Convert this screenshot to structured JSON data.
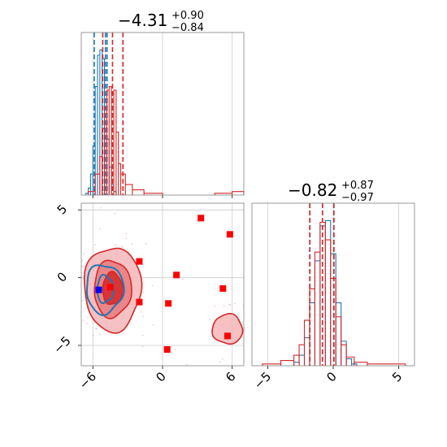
{
  "colors": {
    "blue": "#1f77b4",
    "red": "#d62728",
    "grid": "#cccccc",
    "frame": "#808080",
    "red_fill_light": "#f4b6b8",
    "red_fill_mid": "#e87a7e",
    "red_fill_dark": "#d62728",
    "marker_red": "#ff0000",
    "marker_blue": "#0000ff"
  },
  "titles": {
    "param1": {
      "value": "−4.31",
      "plus": "+0.90",
      "minus": "−0.84"
    },
    "param2": {
      "value": "−0.82",
      "plus": "+0.87",
      "minus": "−0.97"
    }
  },
  "chart_data": [
    {
      "type": "histogram",
      "panel": "top-left marginal",
      "xlim": [
        -7,
        7
      ],
      "xticks": [
        "−6",
        "0",
        "6"
      ],
      "grid": true,
      "series": [
        {
          "color": "#1f77b4",
          "bins": [
            [
              -6.6,
              -6.4,
              0.01
            ],
            [
              -6.4,
              -6.2,
              0.04
            ],
            [
              -6.2,
              -6.0,
              0.12
            ],
            [
              -6.0,
              -5.8,
              0.28
            ],
            [
              -5.8,
              -5.6,
              0.62
            ],
            [
              -5.6,
              -5.4,
              0.8
            ],
            [
              -5.4,
              -5.2,
              0.83
            ],
            [
              -5.2,
              -5.0,
              0.78
            ],
            [
              -5.0,
              -4.8,
              0.55
            ],
            [
              -4.8,
              -4.6,
              0.32
            ],
            [
              -4.6,
              -4.4,
              0.16
            ],
            [
              -4.4,
              -4.2,
              0.06
            ],
            [
              -4.2,
              -4.0,
              0.02
            ]
          ],
          "quantiles": [
            -5.88,
            -4.92,
            -4.78
          ]
        },
        {
          "color": "#d62728",
          "bins": [
            [
              -6.4,
              -5.8,
              0.02
            ],
            [
              -5.8,
              -5.4,
              0.12
            ],
            [
              -5.4,
              -5.2,
              0.22
            ],
            [
              -5.2,
              -5.0,
              0.38
            ],
            [
              -5.0,
              -4.8,
              0.5
            ],
            [
              -4.8,
              -4.6,
              0.6
            ],
            [
              -4.6,
              -4.4,
              0.62
            ],
            [
              -4.4,
              -4.2,
              0.58
            ],
            [
              -4.2,
              -4.0,
              0.6
            ],
            [
              -4.0,
              -3.8,
              0.36
            ],
            [
              -3.8,
              -3.6,
              0.18
            ],
            [
              -3.6,
              -3.2,
              0.12
            ],
            [
              -3.2,
              -2.6,
              0.06
            ],
            [
              -2.6,
              -1.6,
              0.03
            ],
            [
              -1.6,
              0.0,
              0.01
            ],
            [
              4.5,
              6.0,
              0.01
            ],
            [
              6.0,
              7.0,
              0.02
            ]
          ],
          "quantiles": [
            -5.15,
            -4.31,
            -3.41
          ]
        }
      ]
    },
    {
      "type": "histogram",
      "panel": "bottom-right marginal",
      "xlim": [
        -6.2,
        6.2
      ],
      "xticks": [
        "−5",
        "0",
        "5"
      ],
      "grid": true,
      "series": [
        {
          "color": "#1f77b4",
          "bins": [
            [
              -3.0,
              -2.6,
              0.02
            ],
            [
              -2.6,
              -2.2,
              0.06
            ],
            [
              -2.2,
              -1.8,
              0.16
            ],
            [
              -1.8,
              -1.4,
              0.36
            ],
            [
              -1.4,
              -1.0,
              0.6
            ],
            [
              -1.0,
              -0.6,
              0.8
            ],
            [
              -0.6,
              -0.2,
              0.83
            ],
            [
              -0.2,
              0.2,
              0.64
            ],
            [
              0.2,
              0.6,
              0.36
            ],
            [
              0.6,
              1.0,
              0.14
            ],
            [
              1.0,
              1.4,
              0.04
            ],
            [
              1.4,
              1.8,
              0.01
            ]
          ],
          "quantiles": [
            -1.78,
            -0.82,
            0.05
          ]
        },
        {
          "color": "#d62728",
          "bins": [
            [
              -5.4,
              -4.0,
              0.01
            ],
            [
              -4.0,
              -3.0,
              0.03
            ],
            [
              -3.0,
              -2.6,
              0.06
            ],
            [
              -2.6,
              -2.2,
              0.12
            ],
            [
              -2.2,
              -1.8,
              0.26
            ],
            [
              -1.8,
              -1.4,
              0.44
            ],
            [
              -1.4,
              -1.0,
              0.65
            ],
            [
              -1.0,
              -0.6,
              0.82
            ],
            [
              -0.6,
              -0.2,
              0.72
            ],
            [
              -0.2,
              0.2,
              0.5
            ],
            [
              0.2,
              0.6,
              0.28
            ],
            [
              0.6,
              1.0,
              0.12
            ],
            [
              1.0,
              1.6,
              0.05
            ],
            [
              1.6,
              2.6,
              0.02
            ],
            [
              2.6,
              5.5,
              0.01
            ]
          ],
          "quantiles": [
            -1.79,
            -0.82,
            0.05
          ]
        }
      ]
    },
    {
      "type": "scatter",
      "panel": "bottom-left 2D",
      "xlim": [
        -7,
        7
      ],
      "ylim": [
        -6.5,
        5.5
      ],
      "xticks": [
        "−6",
        "0",
        "6"
      ],
      "yticks": [
        "5",
        "0",
        "−5"
      ],
      "grid": true,
      "red_contours": [
        {
          "level": "outer",
          "cx": -4.31,
          "cy": -0.82,
          "rx": 2.45,
          "ry": 3.1
        },
        {
          "level": "mid",
          "cx": -4.31,
          "cy": -0.82,
          "rx": 1.6,
          "ry": 2.1
        },
        {
          "level": "inner",
          "cx": -4.31,
          "cy": -0.82,
          "rx": 0.85,
          "ry": 1.2
        },
        {
          "level": "outer",
          "cx": 5.6,
          "cy": -3.8,
          "rx": 1.3,
          "ry": 1.1
        }
      ],
      "blue_contours": [
        {
          "level": "outer",
          "cx": -5.0,
          "cy": -0.82,
          "rx": 1.6,
          "ry": 1.8
        },
        {
          "level": "inner",
          "cx": -4.95,
          "cy": -0.85,
          "rx": 0.7,
          "ry": 1.0
        }
      ],
      "red_points": [
        {
          "x": 3.3,
          "y": 4.4
        },
        {
          "x": 5.8,
          "y": 3.2
        },
        {
          "x": -2.0,
          "y": 1.2
        },
        {
          "x": 1.2,
          "y": 0.2
        },
        {
          "x": -4.5,
          "y": -0.7
        },
        {
          "x": 5.2,
          "y": -0.8
        },
        {
          "x": -2.0,
          "y": -1.8
        },
        {
          "x": 0.5,
          "y": -1.9
        },
        {
          "x": 5.6,
          "y": -4.3
        },
        {
          "x": 0.4,
          "y": -5.3
        }
      ],
      "blue_points": [
        {
          "x": -5.5,
          "y": -0.9
        }
      ]
    }
  ]
}
